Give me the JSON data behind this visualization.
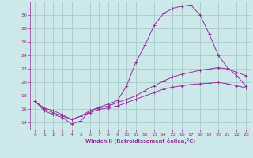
{
  "xlabel": "Windchill (Refroidissement éolien,°C)",
  "background_color": "#cce8e8",
  "grid_color": "#aacccc",
  "line_color": "#993399",
  "xlim": [
    -0.5,
    23.5
  ],
  "ylim": [
    13.0,
    32.0
  ],
  "yticks": [
    14,
    16,
    18,
    20,
    22,
    24,
    26,
    28,
    30
  ],
  "xticks": [
    0,
    1,
    2,
    3,
    4,
    5,
    6,
    7,
    8,
    9,
    10,
    11,
    12,
    13,
    14,
    15,
    16,
    17,
    18,
    19,
    20,
    21,
    22,
    23
  ],
  "line1_x": [
    0,
    1,
    2,
    3,
    4,
    5,
    6,
    7,
    8,
    9,
    10,
    11,
    12,
    13,
    14,
    15,
    16,
    17,
    18,
    19,
    20,
    21,
    22,
    23
  ],
  "line1_y": [
    17.2,
    15.8,
    15.2,
    14.8,
    13.8,
    14.3,
    15.8,
    16.3,
    16.8,
    17.3,
    19.5,
    23.0,
    25.5,
    28.5,
    30.2,
    31.0,
    31.3,
    31.5,
    30.0,
    27.2,
    24.0,
    22.2,
    21.0,
    19.5
  ],
  "line2_x": [
    0,
    1,
    2,
    3,
    4,
    5,
    6,
    7,
    8,
    9,
    10,
    11,
    12,
    13,
    14,
    15,
    16,
    17,
    18,
    19,
    20,
    21,
    22,
    23
  ],
  "line2_y": [
    17.2,
    16.2,
    15.8,
    15.2,
    14.5,
    15.0,
    15.8,
    16.2,
    16.5,
    17.0,
    17.5,
    18.0,
    18.8,
    19.5,
    20.2,
    20.8,
    21.2,
    21.5,
    21.8,
    22.0,
    22.2,
    22.0,
    21.5,
    21.0
  ],
  "line3_x": [
    0,
    1,
    2,
    3,
    4,
    5,
    6,
    7,
    8,
    9,
    10,
    11,
    12,
    13,
    14,
    15,
    16,
    17,
    18,
    19,
    20,
    21,
    22,
    23
  ],
  "line3_y": [
    17.2,
    16.0,
    15.5,
    15.0,
    14.5,
    15.0,
    15.5,
    16.0,
    16.2,
    16.5,
    17.0,
    17.5,
    18.0,
    18.5,
    19.0,
    19.3,
    19.5,
    19.7,
    19.8,
    19.9,
    20.0,
    19.8,
    19.5,
    19.2
  ]
}
